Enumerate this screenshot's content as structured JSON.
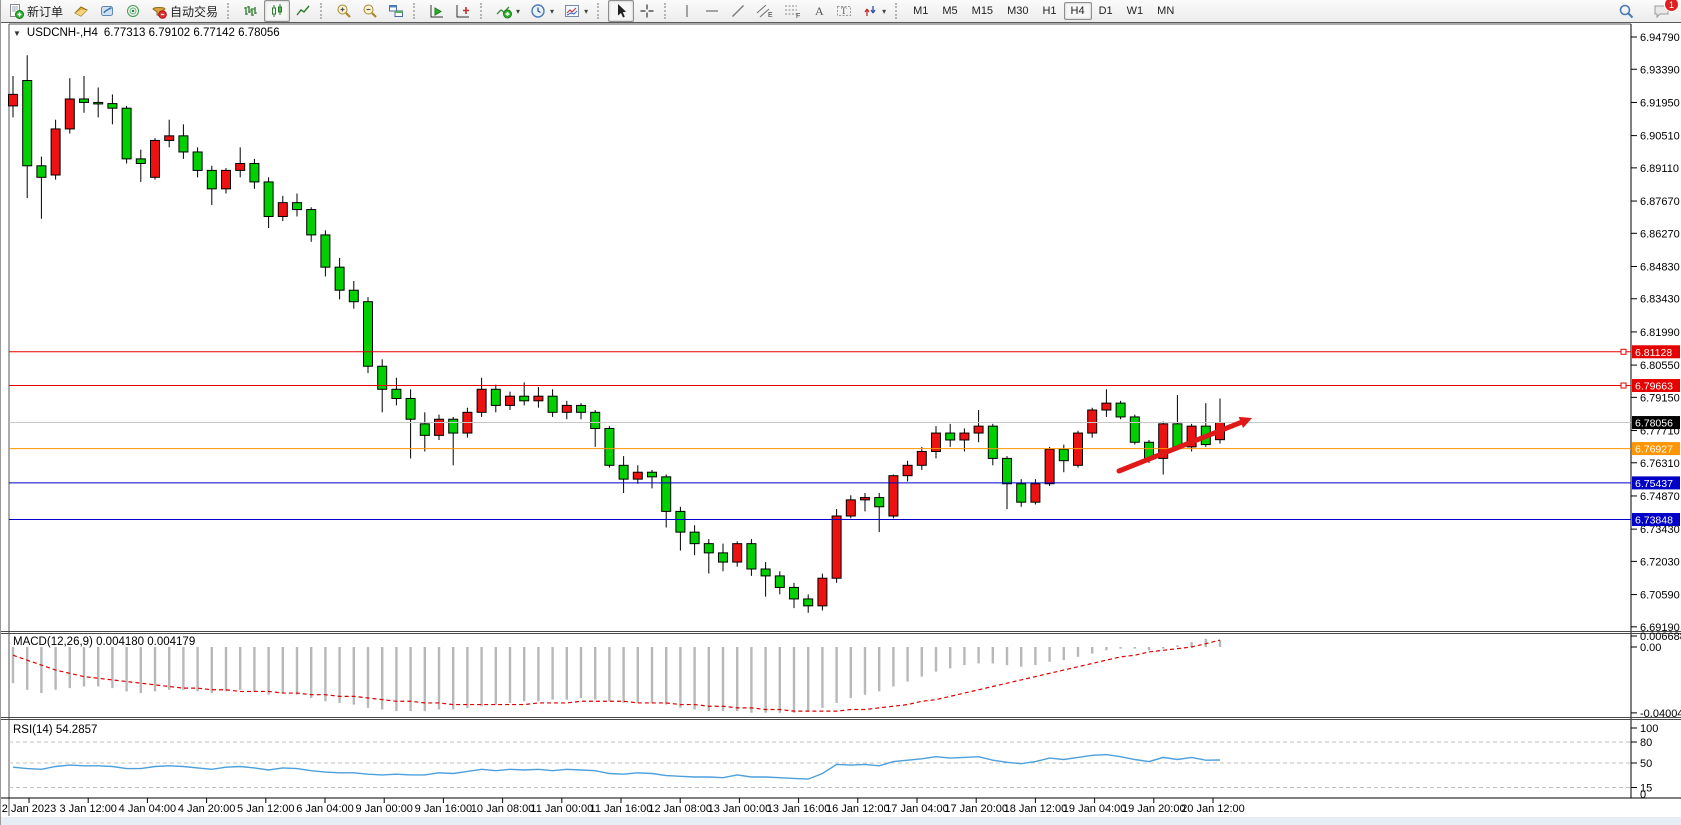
{
  "toolbar": {
    "new_order_label": "新订单",
    "autotrading_label": "自动交易",
    "timeframes": [
      {
        "label": "M1",
        "active": false
      },
      {
        "label": "M5",
        "active": false
      },
      {
        "label": "M15",
        "active": false
      },
      {
        "label": "M30",
        "active": false
      },
      {
        "label": "H1",
        "active": false
      },
      {
        "label": "H4",
        "active": true
      },
      {
        "label": "D1",
        "active": false
      },
      {
        "label": "W1",
        "active": false
      },
      {
        "label": "MN",
        "active": false
      }
    ],
    "chat_badge": "1"
  },
  "chart": {
    "title_symbol": "USDCNH-,H4",
    "title_ohlc": "6.77313 6.79102 6.77142 6.78056",
    "macd_label": "MACD(12,26,9) 0.004180 0.004179",
    "rsi_label": "RSI(14) 54.2857"
  },
  "chart_data": {
    "type": "candlestick",
    "symbol": "USDCNH-",
    "period": "H4",
    "current_ohlc": {
      "open": 6.77313,
      "high": 6.79102,
      "low": 6.77142,
      "close": 6.78056
    },
    "up_color": "#ee1111",
    "down_color": "#00cf00",
    "price_axis_ticks": [
      6.9479,
      6.9339,
      6.9195,
      6.9051,
      6.8911,
      6.8767,
      6.8627,
      6.8483,
      6.8343,
      6.8199,
      6.8055,
      6.7915,
      6.7771,
      6.7631,
      6.7487,
      6.7343,
      6.7203,
      6.7059,
      6.6919
    ],
    "levels": [
      {
        "price": 6.81128,
        "color": "#e60000",
        "label_bg": "#e60000",
        "kind": "resistance"
      },
      {
        "price": 6.79663,
        "color": "#e60000",
        "label_bg": "#e60000",
        "kind": "resistance"
      },
      {
        "price": 6.78056,
        "color": "#c8c8c8",
        "label_bg": "#000000",
        "kind": "current-price"
      },
      {
        "price": 6.76927,
        "color": "#ff9500",
        "label_bg": "#ff9500",
        "kind": "pivot"
      },
      {
        "price": 6.75437,
        "color": "#0000c8",
        "label_bg": "#0000c8",
        "kind": "support"
      },
      {
        "price": 6.73848,
        "color": "#0000c8",
        "label_bg": "#0000c8",
        "kind": "support"
      }
    ],
    "candles": [
      [
        6.918,
        6.931,
        6.913,
        6.923
      ],
      [
        6.929,
        6.94,
        6.878,
        6.892
      ],
      [
        6.892,
        6.896,
        6.869,
        6.887
      ],
      [
        6.888,
        6.912,
        6.886,
        6.908
      ],
      [
        6.908,
        6.93,
        6.906,
        6.921
      ],
      [
        6.921,
        6.931,
        6.915,
        6.9195
      ],
      [
        6.9195,
        6.926,
        6.913,
        6.919
      ],
      [
        6.919,
        6.923,
        6.91,
        6.917
      ],
      [
        6.917,
        6.918,
        6.893,
        6.895
      ],
      [
        6.895,
        6.899,
        6.885,
        6.893
      ],
      [
        6.887,
        6.904,
        6.886,
        6.903
      ],
      [
        6.903,
        6.912,
        6.9,
        6.905
      ],
      [
        6.905,
        6.91,
        6.895,
        6.898
      ],
      [
        6.898,
        6.9,
        6.887,
        6.89
      ],
      [
        6.89,
        6.892,
        6.875,
        6.882
      ],
      [
        6.882,
        6.891,
        6.88,
        6.89
      ],
      [
        6.89,
        6.9,
        6.887,
        6.893
      ],
      [
        6.893,
        6.895,
        6.882,
        6.885
      ],
      [
        6.885,
        6.887,
        6.865,
        6.87
      ],
      [
        6.87,
        6.879,
        6.868,
        6.876
      ],
      [
        6.876,
        6.88,
        6.87,
        6.873
      ],
      [
        6.873,
        6.874,
        6.859,
        6.862
      ],
      [
        6.862,
        6.864,
        6.844,
        6.848
      ],
      [
        6.848,
        6.852,
        6.834,
        6.838
      ],
      [
        6.838,
        6.842,
        6.83,
        6.833
      ],
      [
        6.833,
        6.835,
        6.802,
        6.805
      ],
      [
        6.805,
        6.808,
        6.785,
        6.795
      ],
      [
        6.795,
        6.8,
        6.788,
        6.791
      ],
      [
        6.791,
        6.795,
        6.765,
        6.782
      ],
      [
        6.78,
        6.785,
        6.768,
        6.775
      ],
      [
        6.775,
        6.784,
        6.773,
        6.782
      ],
      [
        6.782,
        6.783,
        6.762,
        6.776
      ],
      [
        6.776,
        6.787,
        6.774,
        6.785
      ],
      [
        6.785,
        6.8,
        6.783,
        6.795
      ],
      [
        6.795,
        6.797,
        6.785,
        6.788
      ],
      [
        6.788,
        6.794,
        6.786,
        6.792
      ],
      [
        6.792,
        6.798,
        6.788,
        6.79
      ],
      [
        6.79,
        6.796,
        6.787,
        6.792
      ],
      [
        6.792,
        6.795,
        6.783,
        6.785
      ],
      [
        6.785,
        6.79,
        6.782,
        6.788
      ],
      [
        6.788,
        6.789,
        6.782,
        6.785
      ],
      [
        6.785,
        6.786,
        6.77,
        6.778
      ],
      [
        6.778,
        6.779,
        6.761,
        6.762
      ],
      [
        6.762,
        6.766,
        6.75,
        6.756
      ],
      [
        6.756,
        6.762,
        6.754,
        6.759
      ],
      [
        6.759,
        6.76,
        6.752,
        6.757
      ],
      [
        6.757,
        6.758,
        6.735,
        6.742
      ],
      [
        6.742,
        6.744,
        6.725,
        6.733
      ],
      [
        6.733,
        6.736,
        6.723,
        6.728
      ],
      [
        6.728,
        6.73,
        6.715,
        6.724
      ],
      [
        6.724,
        6.728,
        6.716,
        6.72
      ],
      [
        6.72,
        6.729,
        6.718,
        6.728
      ],
      [
        6.728,
        6.73,
        6.714,
        6.717
      ],
      [
        6.717,
        6.72,
        6.705,
        6.714
      ],
      [
        6.714,
        6.716,
        6.706,
        6.709
      ],
      [
        6.709,
        6.711,
        6.7,
        6.704
      ],
      [
        6.704,
        6.706,
        6.698,
        6.701
      ],
      [
        6.701,
        6.715,
        6.699,
        6.713
      ],
      [
        6.713,
        6.743,
        6.711,
        6.74
      ],
      [
        6.74,
        6.749,
        6.739,
        6.747
      ],
      [
        6.747,
        6.75,
        6.742,
        6.748
      ],
      [
        6.748,
        6.75,
        6.733,
        6.744
      ],
      [
        6.74,
        6.758,
        6.739,
        6.7575
      ],
      [
        6.7575,
        6.764,
        6.755,
        6.762
      ],
      [
        6.762,
        6.77,
        6.76,
        6.768
      ],
      [
        6.768,
        6.779,
        6.765,
        6.776
      ],
      [
        6.776,
        6.78,
        6.77,
        6.773
      ],
      [
        6.773,
        6.778,
        6.768,
        6.776
      ],
      [
        6.776,
        6.786,
        6.772,
        6.779
      ],
      [
        6.779,
        6.78,
        6.762,
        6.765
      ],
      [
        6.765,
        6.766,
        6.743,
        6.754
      ],
      [
        6.754,
        6.756,
        6.744,
        6.746
      ],
      [
        6.746,
        6.756,
        6.745,
        6.754
      ],
      [
        6.754,
        6.77,
        6.753,
        6.769
      ],
      [
        6.769,
        6.771,
        6.759,
        6.764
      ],
      [
        6.762,
        6.777,
        6.761,
        6.776
      ],
      [
        6.776,
        6.787,
        6.774,
        6.786
      ],
      [
        6.786,
        6.795,
        6.783,
        6.789
      ],
      [
        6.789,
        6.79,
        6.782,
        6.783
      ],
      [
        6.783,
        6.784,
        6.771,
        6.772
      ],
      [
        6.772,
        6.773,
        6.763,
        6.765
      ],
      [
        6.765,
        6.781,
        6.758,
        6.78
      ],
      [
        6.78,
        6.7925,
        6.769,
        6.77
      ],
      [
        6.77,
        6.78,
        6.768,
        6.779
      ],
      [
        6.779,
        6.789,
        6.77,
        6.771
      ],
      [
        6.77313,
        6.79102,
        6.77142,
        6.78056
      ]
    ],
    "macd": {
      "params": "12,26,9",
      "value": 0.00418,
      "signal_value": 0.004179,
      "axis_labels": [
        0.006688,
        0,
        -0.040045
      ],
      "hist": [
        -0.022,
        -0.026,
        -0.028,
        -0.026,
        -0.025,
        -0.024,
        -0.024,
        -0.025,
        -0.027,
        -0.028,
        -0.027,
        -0.026,
        -0.026,
        -0.027,
        -0.028,
        -0.027,
        -0.026,
        -0.027,
        -0.029,
        -0.028,
        -0.029,
        -0.031,
        -0.033,
        -0.034,
        -0.035,
        -0.037,
        -0.038,
        -0.039,
        -0.039,
        -0.039,
        -0.038,
        -0.038,
        -0.037,
        -0.036,
        -0.035,
        -0.034,
        -0.033,
        -0.033,
        -0.032,
        -0.032,
        -0.031,
        -0.032,
        -0.033,
        -0.034,
        -0.034,
        -0.034,
        -0.035,
        -0.037,
        -0.038,
        -0.039,
        -0.039,
        -0.039,
        -0.04,
        -0.04,
        -0.040045,
        -0.04,
        -0.039,
        -0.037,
        -0.034,
        -0.031,
        -0.029,
        -0.027,
        -0.024,
        -0.021,
        -0.018,
        -0.015,
        -0.013,
        -0.011,
        -0.01,
        -0.01,
        -0.011,
        -0.012,
        -0.011,
        -0.009,
        -0.008,
        -0.006,
        -0.004,
        -0.002,
        -0.001,
        -0.001,
        -0.002,
        -0.001,
        0.001,
        0.003,
        0.005,
        0.00418
      ],
      "signal": [
        -0.005,
        -0.008,
        -0.011,
        -0.014,
        -0.016,
        -0.018,
        -0.019,
        -0.02,
        -0.021,
        -0.022,
        -0.023,
        -0.024,
        -0.025,
        -0.025,
        -0.026,
        -0.026,
        -0.027,
        -0.027,
        -0.027,
        -0.028,
        -0.028,
        -0.029,
        -0.029,
        -0.03,
        -0.03,
        -0.031,
        -0.032,
        -0.033,
        -0.033,
        -0.034,
        -0.034,
        -0.035,
        -0.035,
        -0.035,
        -0.035,
        -0.035,
        -0.035,
        -0.034,
        -0.034,
        -0.034,
        -0.033,
        -0.033,
        -0.033,
        -0.033,
        -0.034,
        -0.034,
        -0.034,
        -0.035,
        -0.035,
        -0.036,
        -0.036,
        -0.037,
        -0.037,
        -0.038,
        -0.038,
        -0.039,
        -0.039,
        -0.039,
        -0.039,
        -0.038,
        -0.038,
        -0.037,
        -0.036,
        -0.035,
        -0.033,
        -0.032,
        -0.03,
        -0.028,
        -0.026,
        -0.024,
        -0.022,
        -0.02,
        -0.018,
        -0.016,
        -0.014,
        -0.012,
        -0.01,
        -0.008,
        -0.006,
        -0.005,
        -0.003,
        -0.002,
        -0.001,
        0,
        0.002,
        0.004179
      ]
    },
    "rsi": {
      "period": 14,
      "value": 54.2857,
      "dashed_levels": [
        80,
        50,
        15
      ],
      "axis_labels": [
        100,
        80,
        50,
        15,
        0
      ],
      "values": [
        44,
        42,
        41,
        45,
        47,
        46,
        46,
        45,
        42,
        42,
        45,
        46,
        45,
        43,
        41,
        44,
        45,
        43,
        40,
        43,
        42,
        39,
        37,
        36,
        36,
        34,
        33,
        34,
        33,
        33,
        36,
        35,
        38,
        41,
        39,
        41,
        40,
        41,
        39,
        41,
        40,
        39,
        35,
        34,
        36,
        35,
        32,
        31,
        30,
        30,
        29,
        33,
        30,
        30,
        29,
        28,
        27,
        35,
        48,
        47,
        48,
        46,
        52,
        54,
        56,
        59,
        57,
        58,
        59,
        54,
        51,
        49,
        52,
        57,
        55,
        58,
        61,
        62,
        59,
        55,
        52,
        58,
        55,
        58,
        54,
        54.2857
      ]
    },
    "time_axis": [
      "2 Jan 2023",
      "3 Jan 12:00",
      "4 Jan 04:00",
      "4 Jan 20:00",
      "5 Jan 12:00",
      "6 Jan 04:00",
      "9 Jan 00:00",
      "9 Jan 16:00",
      "10 Jan 08:00",
      "11 Jan 00:00",
      "11 Jan 16:00",
      "12 Jan 08:00",
      "13 Jan 00:00",
      "13 Jan 16:00",
      "16 Jan 12:00",
      "17 Jan 04:00",
      "17 Jan 20:00",
      "18 Jan 12:00",
      "19 Jan 04:00",
      "19 Jan 20:00",
      "20 Jan 12:00"
    ],
    "annotation_arrow": {
      "from": [
        1118,
        471
      ],
      "to": [
        1251,
        418
      ],
      "color": "#e01818"
    }
  }
}
